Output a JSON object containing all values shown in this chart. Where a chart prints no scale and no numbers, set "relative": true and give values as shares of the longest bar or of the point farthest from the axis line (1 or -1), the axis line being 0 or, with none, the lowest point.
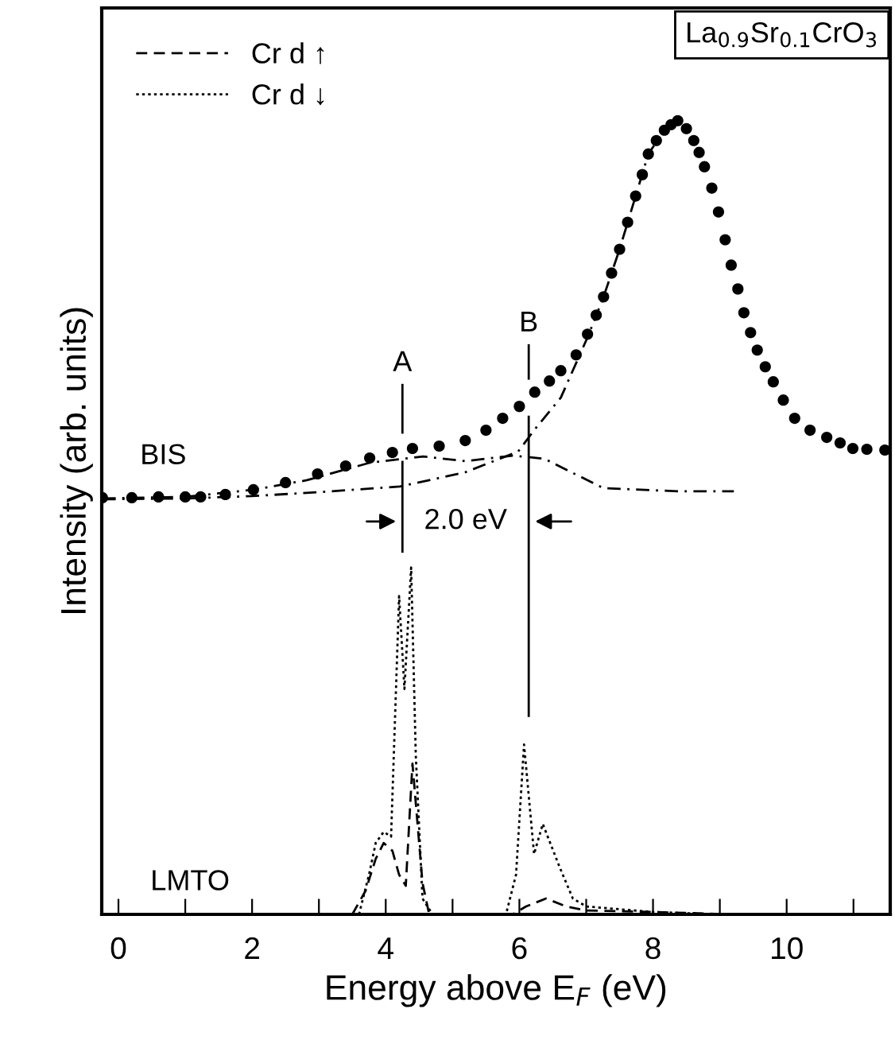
{
  "chart_data": {
    "type": "line",
    "relative": true,
    "title": "La$_{0.9}$Sr$_{0.1}$CrO$_{3}$",
    "xlabel": "Energy above E$_{F}$ (eV)",
    "ylabel": "Intensity (arb. units)",
    "xlim": [
      -0.25,
      11.55
    ],
    "xticks": [
      0,
      {
        "value": 1,
        "label": null
      },
      2,
      {
        "value": 3,
        "label": null
      },
      4,
      {
        "value": 5,
        "label": null
      },
      6,
      {
        "value": 7,
        "label": null
      },
      8,
      {
        "value": 9,
        "label": null
      },
      10,
      {
        "value": 11,
        "label": null
      }
    ],
    "legend": "top left",
    "grid": false,
    "annotations": [
      "BIS",
      "LMTO",
      "A",
      "B",
      "2.0 eV"
    ],
    "series": [
      {
        "type": "scatter",
        "marker": "circle",
        "color": "#000000",
        "x": [
          -0.24,
          0.2,
          0.6,
          1.0,
          1.23,
          1.6,
          2.02,
          2.5,
          2.98,
          3.4,
          3.76,
          4.1,
          4.4,
          4.8,
          5.19,
          5.5,
          5.75,
          6.0,
          6.23,
          6.45,
          6.62,
          6.85,
          7.02,
          7.15,
          7.26,
          7.38,
          7.5,
          7.62,
          7.74,
          7.84,
          7.93,
          8.05,
          8.17,
          8.27,
          8.37,
          8.5,
          8.61,
          8.69,
          8.77,
          8.88,
          8.98,
          9.08,
          9.17,
          9.27,
          9.36,
          9.46,
          9.56,
          9.68,
          9.8,
          9.95,
          10.12,
          10.35,
          10.6,
          10.8,
          10.99,
          11.2,
          11.47
        ],
        "values": [
          0.525,
          0.525,
          0.526,
          0.526,
          0.526,
          0.529,
          0.535,
          0.544,
          0.555,
          0.565,
          0.575,
          0.582,
          0.587,
          0.59,
          0.597,
          0.61,
          0.625,
          0.64,
          0.658,
          0.672,
          0.685,
          0.705,
          0.731,
          0.755,
          0.778,
          0.808,
          0.838,
          0.872,
          0.905,
          0.932,
          0.958,
          0.975,
          0.988,
          0.995,
          1.0,
          0.99,
          0.975,
          0.96,
          0.942,
          0.915,
          0.885,
          0.85,
          0.818,
          0.788,
          0.758,
          0.733,
          0.711,
          0.69,
          0.671,
          0.648,
          0.625,
          0.61,
          0.601,
          0.594,
          0.587,
          0.586,
          0.585
        ]
      },
      {
        "line_style": "dashdot",
        "color": "#000000",
        "x": [
          -0.24,
          1.0,
          2.0,
          3.0,
          4.21,
          5.19,
          5.98,
          6.23,
          6.62,
          7.02,
          7.26,
          7.5,
          7.74,
          7.93,
          8.17,
          8.37
        ],
        "values": [
          0.523,
          0.524,
          0.527,
          0.532,
          0.539,
          0.557,
          0.583,
          0.611,
          0.651,
          0.727,
          0.778,
          0.838,
          0.905,
          0.958,
          0.988,
          1.0
        ]
      },
      {
        "line_style": "dashdot",
        "color": "#000000",
        "x": [
          -0.24,
          1.0,
          2.02,
          2.82,
          3.76,
          4.56,
          5.19,
          5.9,
          6.38,
          6.78,
          7.26,
          8.37,
          9.21
        ],
        "values": [
          0.524,
          0.526,
          0.535,
          0.547,
          0.569,
          0.577,
          0.571,
          0.578,
          0.574,
          0.557,
          0.537,
          0.533,
          0.533
        ]
      },
      {
        "name": "Cr d ↑",
        "line_style": "dashed",
        "color": "#000000",
        "x": [
          3.5,
          3.7,
          3.85,
          3.97,
          4.1,
          4.2,
          4.3,
          4.4,
          4.47,
          4.55,
          4.65,
          5.9,
          6.1,
          6.4,
          6.7,
          7.0,
          8.0,
          9.2
        ],
        "values": [
          0.0,
          0.03,
          0.07,
          0.09,
          0.08,
          0.05,
          0.036,
          0.19,
          0.12,
          0.04,
          0.0,
          0.0,
          0.01,
          0.02,
          0.01,
          0.005,
          0.003,
          0.0
        ]
      },
      {
        "name": "Cr d ↓",
        "line_style": "dotted",
        "color": "#000000",
        "x": [
          3.6,
          3.75,
          3.85,
          3.97,
          4.08,
          4.2,
          4.28,
          4.38,
          4.45,
          4.55,
          4.7,
          5.8,
          5.95,
          6.07,
          6.22,
          6.35,
          6.6,
          6.8,
          7.0,
          8.0,
          9.0
        ],
        "values": [
          0.0,
          0.05,
          0.09,
          0.104,
          0.098,
          0.401,
          0.284,
          0.437,
          0.2,
          0.02,
          0.0,
          0.0,
          0.05,
          0.214,
          0.076,
          0.114,
          0.06,
          0.02,
          0.01,
          0.003,
          0.0
        ]
      },
      {
        "line_style": "solid",
        "color": "#000000",
        "x": [
          4.25,
          4.25
        ],
        "values": [
          0.607,
          0.667
        ]
      },
      {
        "line_style": "solid",
        "color": "#000000",
        "x": [
          4.25,
          4.25
        ],
        "values": [
          0.457,
          0.57
        ]
      },
      {
        "line_style": "solid",
        "color": "#000000",
        "x": [
          6.14,
          6.14
        ],
        "values": [
          0.675,
          0.717
        ]
      },
      {
        "line_style": "solid",
        "color": "#000000",
        "x": [
          6.14,
          6.14
        ],
        "values": [
          0.25,
          0.627
        ]
      }
    ]
  }
}
